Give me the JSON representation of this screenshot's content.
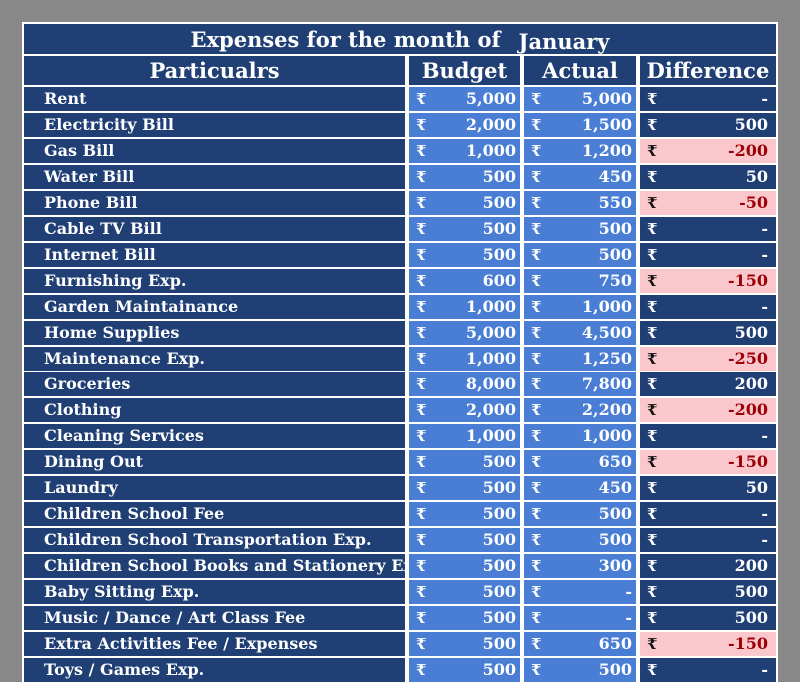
{
  "title": {
    "text": "Expenses for the month of",
    "month": "January"
  },
  "headers": {
    "particulars": "Particualrs",
    "budget": "Budget",
    "actual": "Actual",
    "difference": "Difference"
  },
  "currency_symbol": "₹",
  "colors": {
    "header_bg": "#1f3f75",
    "value_bg": "#4a7ed4",
    "negative_bg": "#f9c7cc",
    "negative_text": "#9c0006"
  },
  "rows": [
    {
      "name": "Rent",
      "budget": "5,000",
      "actual": "5,000",
      "difference": "-",
      "negative": false
    },
    {
      "name": "Electricity Bill",
      "budget": "2,000",
      "actual": "1,500",
      "difference": "500",
      "negative": false
    },
    {
      "name": "Gas Bill",
      "budget": "1,000",
      "actual": "1,200",
      "difference": "-200",
      "negative": true
    },
    {
      "name": "Water Bill",
      "budget": "500",
      "actual": "450",
      "difference": "50",
      "negative": false
    },
    {
      "name": "Phone Bill",
      "budget": "500",
      "actual": "550",
      "difference": "-50",
      "negative": true
    },
    {
      "name": "Cable TV Bill",
      "budget": "500",
      "actual": "500",
      "difference": "-",
      "negative": false
    },
    {
      "name": "Internet Bill",
      "budget": "500",
      "actual": "500",
      "difference": "-",
      "negative": false
    },
    {
      "name": "Furnishing Exp.",
      "budget": "600",
      "actual": "750",
      "difference": "-150",
      "negative": true
    },
    {
      "name": "Garden Maintainance",
      "budget": "1,000",
      "actual": "1,000",
      "difference": "-",
      "negative": false
    },
    {
      "name": "Home Supplies",
      "budget": "5,000",
      "actual": "4,500",
      "difference": "500",
      "negative": false
    },
    {
      "name": "Maintenance Exp.",
      "budget": "1,000",
      "actual": "1,250",
      "difference": "-250",
      "negative": true
    },
    {
      "name": "Groceries",
      "budget": "8,000",
      "actual": "7,800",
      "difference": "200",
      "negative": false
    },
    {
      "name": "Clothing",
      "budget": "2,000",
      "actual": "2,200",
      "difference": "-200",
      "negative": true
    },
    {
      "name": "Cleaning Services",
      "budget": "1,000",
      "actual": "1,000",
      "difference": "-",
      "negative": false
    },
    {
      "name": "Dining Out",
      "budget": "500",
      "actual": "650",
      "difference": "-150",
      "negative": true
    },
    {
      "name": "Laundry",
      "budget": "500",
      "actual": "450",
      "difference": "50",
      "negative": false
    },
    {
      "name": "Children School Fee",
      "budget": "500",
      "actual": "500",
      "difference": "-",
      "negative": false
    },
    {
      "name": "Children School Transportation Exp.",
      "budget": "500",
      "actual": "500",
      "difference": "-",
      "negative": false
    },
    {
      "name": "Children School Books and Stationery Exp",
      "budget": "500",
      "actual": "300",
      "difference": "200",
      "negative": false
    },
    {
      "name": "Baby Sitting Exp.",
      "budget": "500",
      "actual": "-",
      "difference": "500",
      "negative": false
    },
    {
      "name": "Music / Dance / Art Class Fee",
      "budget": "500",
      "actual": "-",
      "difference": "500",
      "negative": false
    },
    {
      "name": "Extra Activities Fee / Expenses",
      "budget": "500",
      "actual": "650",
      "difference": "-150",
      "negative": true
    },
    {
      "name": "Toys / Games Exp.",
      "budget": "500",
      "actual": "500",
      "difference": "-",
      "negative": false
    }
  ]
}
